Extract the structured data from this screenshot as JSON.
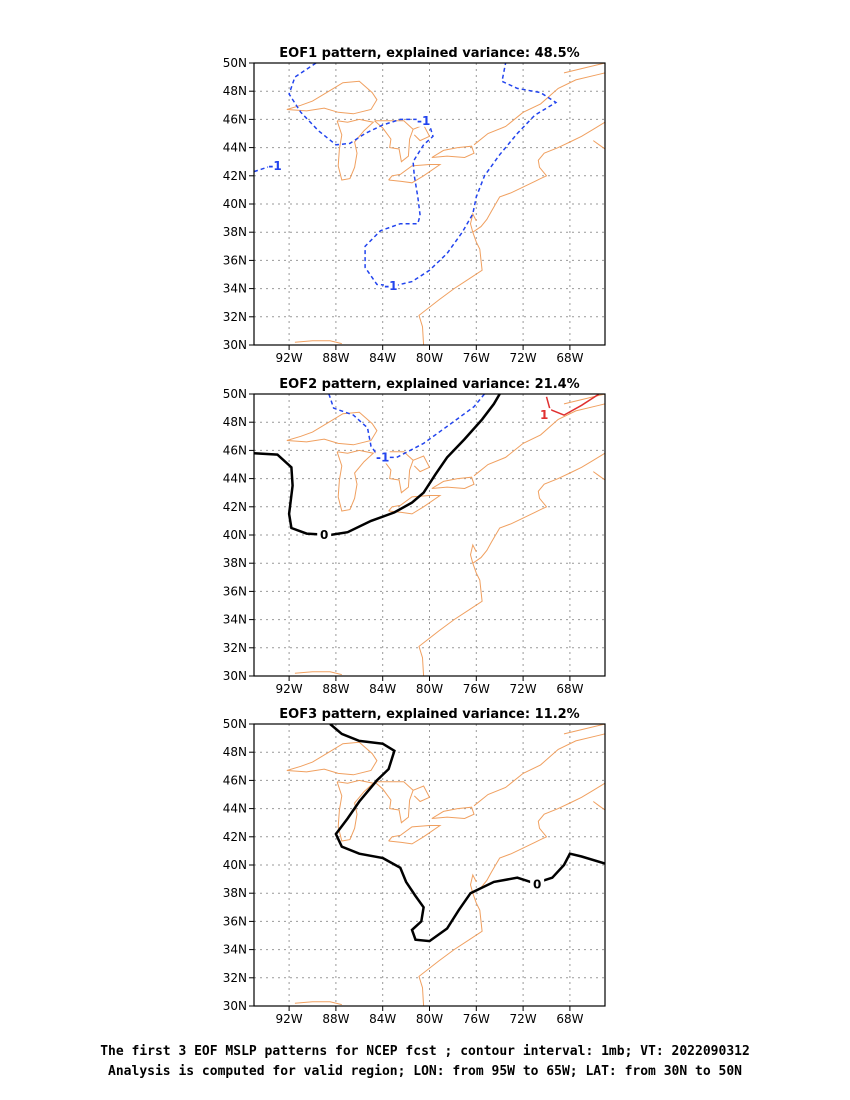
{
  "panels": [
    {
      "title": "EOF1 pattern, explained variance: 48.5%",
      "contour_labels": [
        "-1",
        "-1",
        "-1"
      ]
    },
    {
      "title": "EOF2 pattern, explained variance: 21.4%",
      "contour_labels": [
        "-1",
        "0",
        "1"
      ]
    },
    {
      "title": "EOF3 pattern, explained variance: 11.2%",
      "contour_labels": [
        "0"
      ]
    }
  ],
  "lat_labels": [
    "50N",
    "48N",
    "46N",
    "44N",
    "42N",
    "40N",
    "38N",
    "36N",
    "34N",
    "32N",
    "30N"
  ],
  "lon_labels": [
    "92W",
    "88W",
    "84W",
    "80W",
    "76W",
    "72W",
    "68W"
  ],
  "caption": {
    "line1": "The first 3 EOF MSLP patterns for NCEP fcst ; contour interval: 1mb; VT: 2022090312",
    "line2": "Analysis is computed for valid region; LON: from 95W to 65W; LAT: from 30N to 50N"
  },
  "colors": {
    "coastline": "#f0a060",
    "negative_contour": "#2244ee",
    "zero_contour": "#000000",
    "positive_contour": "#e03030",
    "grid": "#999999"
  }
}
